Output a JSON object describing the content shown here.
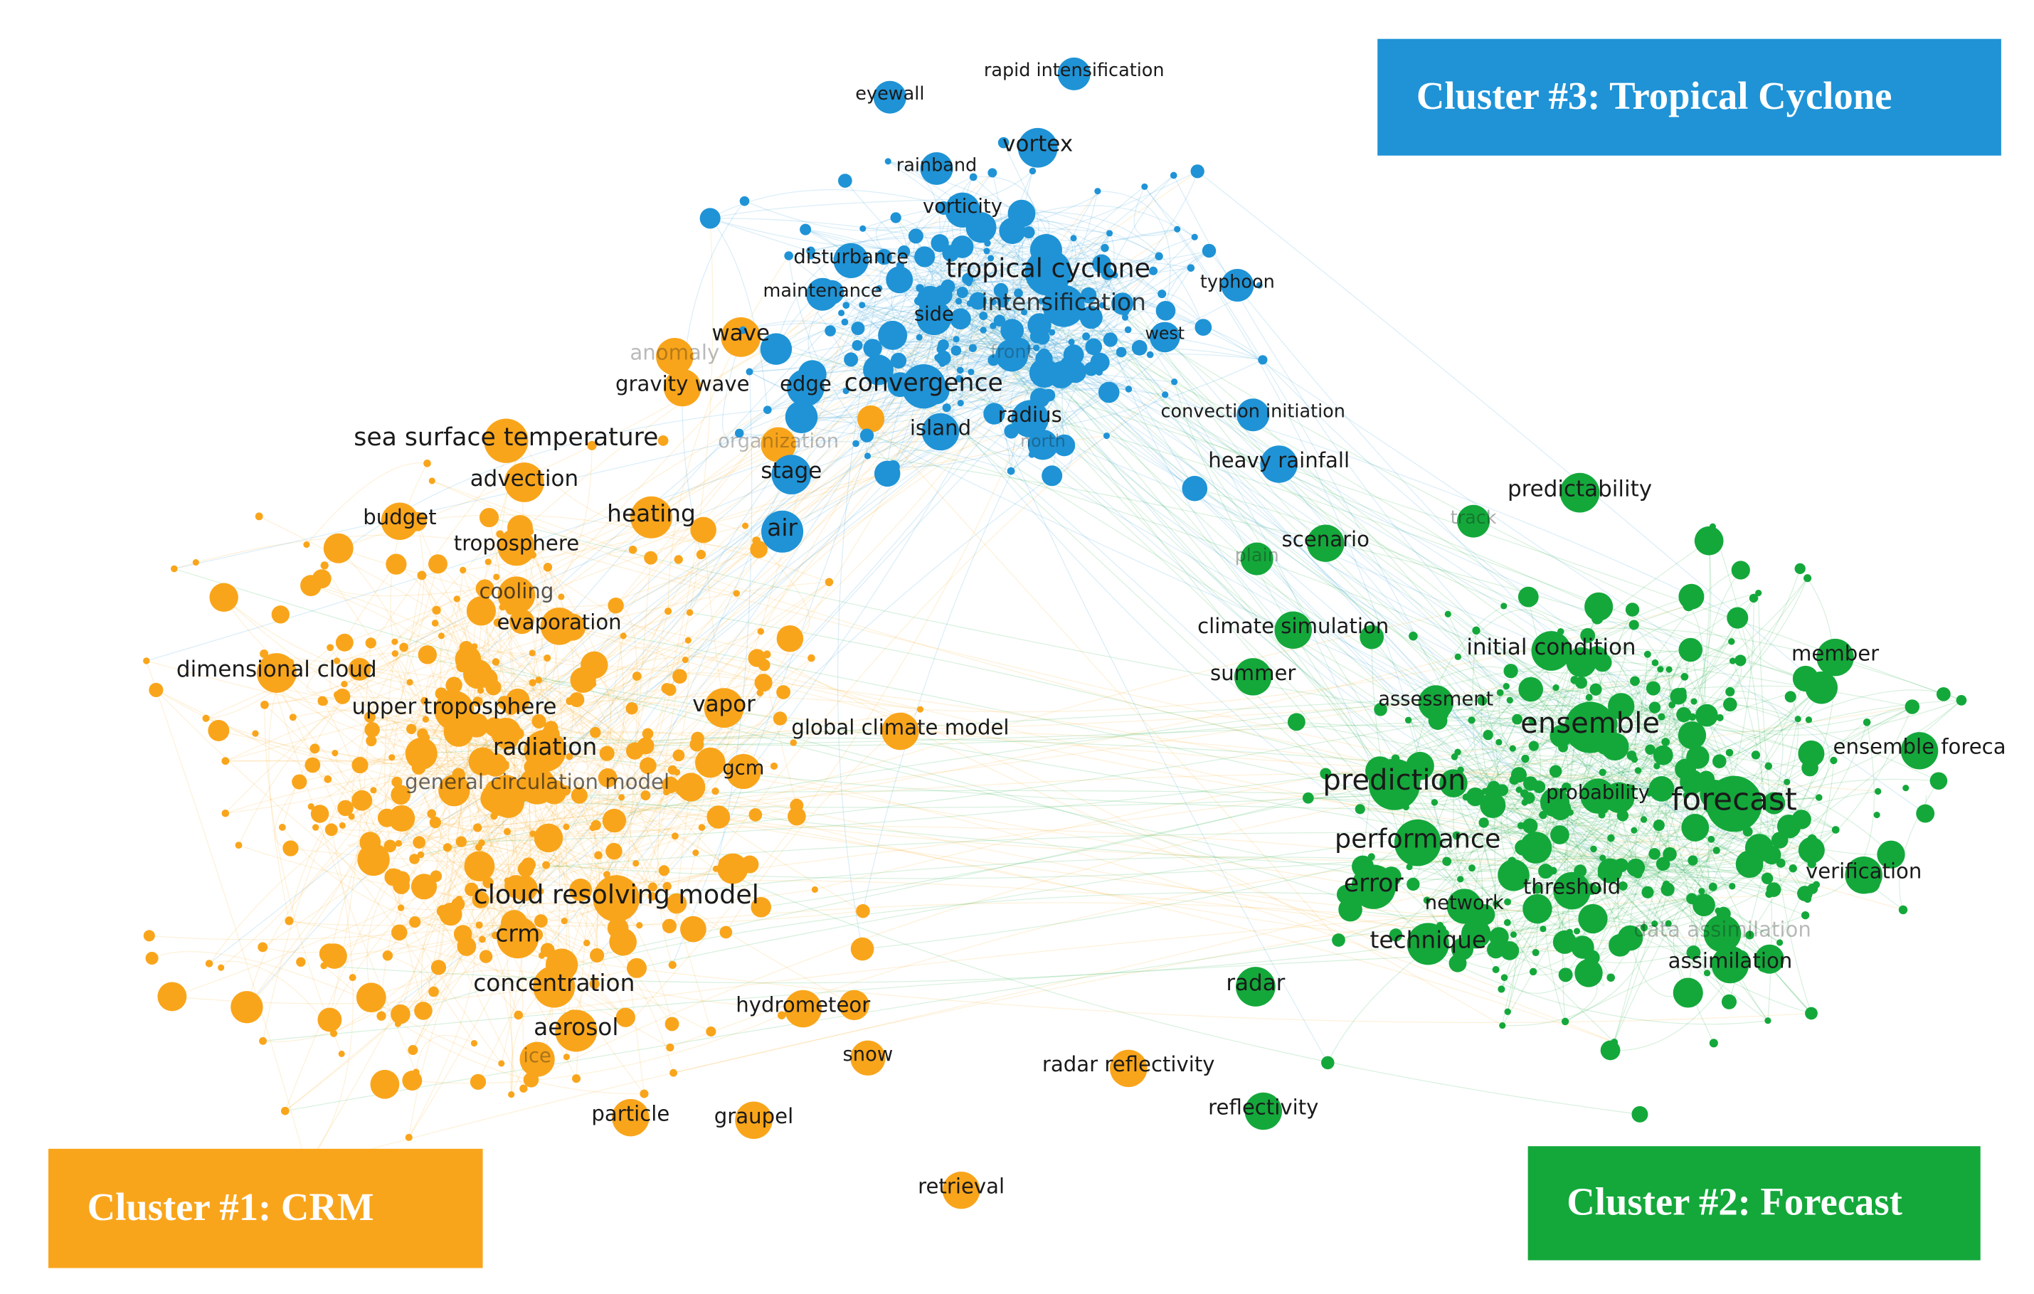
{
  "clusters": [
    {
      "label": "Cluster #1: CRM",
      "color": "#f9a51b",
      "nodes": [
        "sea surface temperature",
        "advection",
        "budget",
        "heating",
        "troposphere",
        "cooling",
        "evaporation",
        "dimensional cloud",
        "upper troposphere",
        "vapor",
        "radiation",
        "gcm",
        "general circulation model",
        "global climate model",
        "cloud resolving model",
        "crm",
        "concentration",
        "hydrometeor",
        "aerosol",
        "ice",
        "snow",
        "radar reflectivity",
        "particle",
        "graupel",
        "retrieval",
        "wave",
        "gravity wave",
        "anomaly",
        "organization"
      ]
    },
    {
      "label": "Cluster #2: Forecast",
      "color": "#14a83b",
      "nodes": [
        "predictability",
        "scenario",
        "climate simulation",
        "initial condition",
        "member",
        "summer",
        "assessment",
        "ensemble",
        "ensemble foreca",
        "prediction",
        "probability",
        "forecast",
        "performance",
        "error",
        "network",
        "threshold",
        "verification",
        "technique",
        "data assimilation",
        "assimilation",
        "radar",
        "reflectivity",
        "plain",
        "track"
      ]
    },
    {
      "label": "Cluster #3: Tropical Cyclone",
      "color": "#1f93d6",
      "nodes": [
        "rapid intensification",
        "eyewall",
        "vortex",
        "rainband",
        "vorticity",
        "disturbance",
        "tropical cyclone",
        "maintenance",
        "typhoon",
        "intensification",
        "side",
        "west",
        "edge",
        "convergence",
        "island",
        "radius",
        "convection initiation",
        "north",
        "stage",
        "heavy rainfall",
        "air",
        "front"
      ]
    }
  ]
}
